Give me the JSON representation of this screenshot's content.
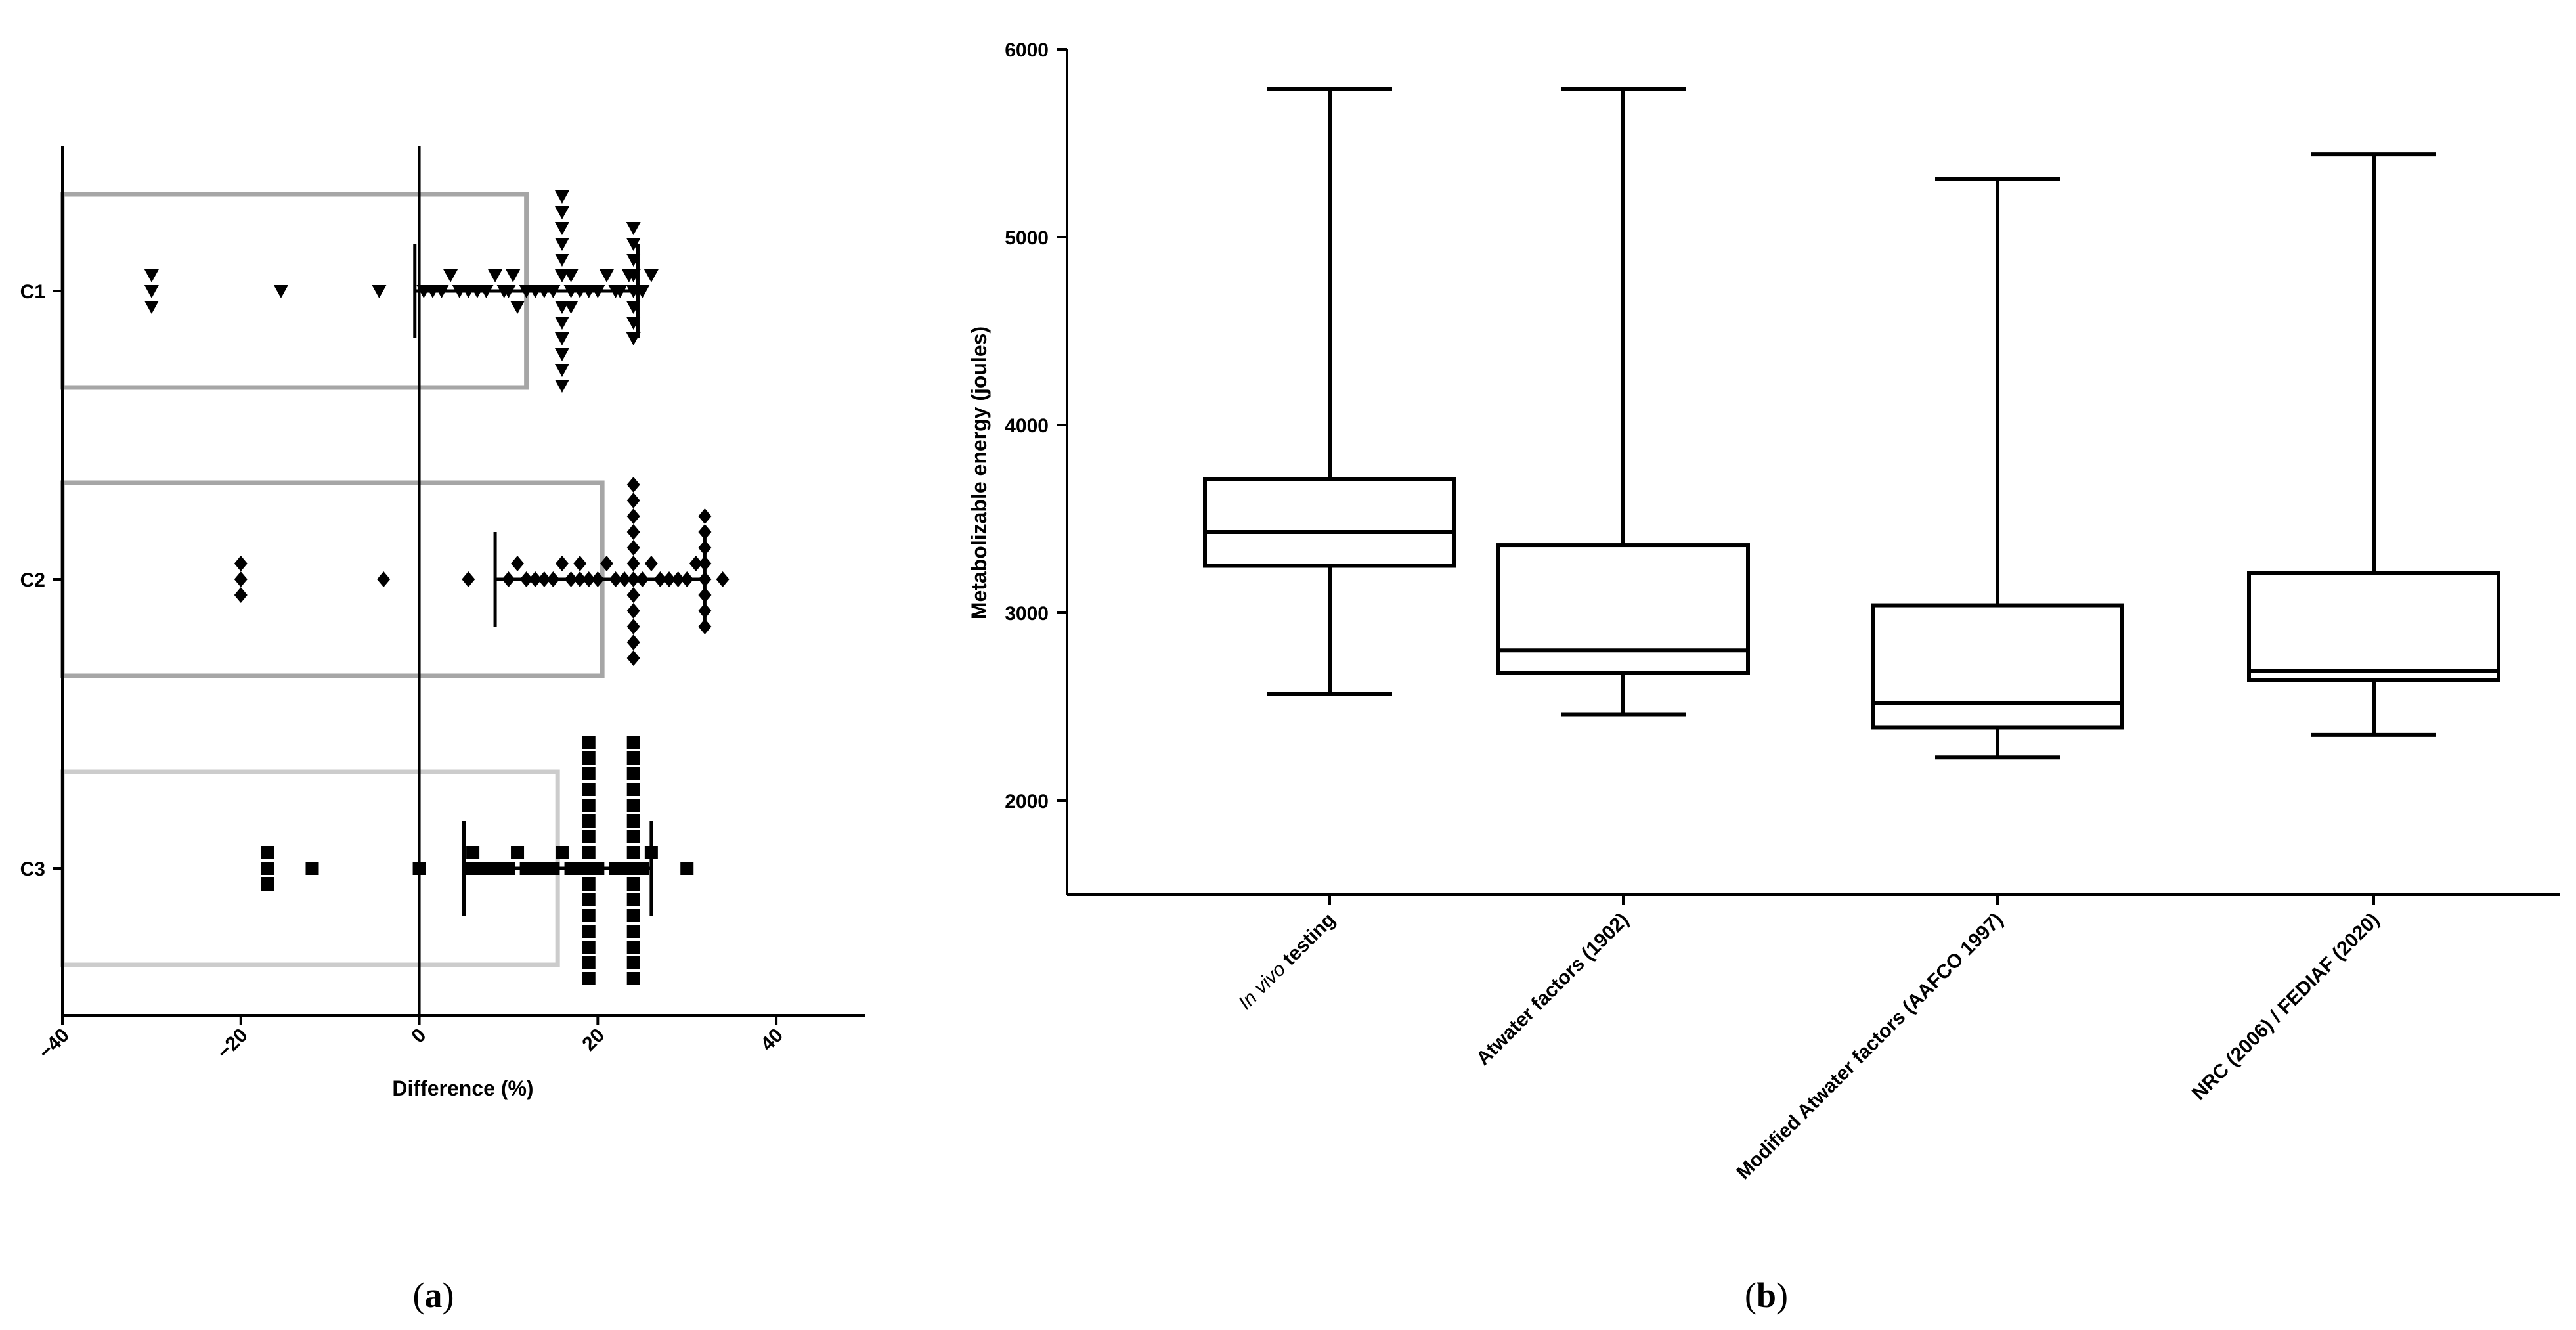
{
  "chart_data": [
    {
      "panel": "(a)",
      "panel_letter": "a",
      "type": "scatter",
      "orientation": "horizontal",
      "xlabel": "Difference (%)",
      "ylabel": "",
      "xlim": [
        -40,
        50
      ],
      "xticks": [
        -40,
        -20,
        0,
        20,
        40
      ],
      "xtick_labels": [
        "−40",
        "−20",
        "0",
        "20",
        "40"
      ],
      "categories": [
        "C1",
        "C2",
        "C3"
      ],
      "reference_line_x": 0,
      "colors": {
        "C1": "#a6a6a6",
        "C2": "#a6a6a6",
        "C3": "#cccccc",
        "points": "#000000"
      },
      "groups": [
        {
          "name": "C1",
          "marker": "triangle-down",
          "bar_mean": 12,
          "error": {
            "low": -0.5,
            "high": 24.5
          },
          "points": [
            -30,
            -30,
            -30,
            -15.5,
            -4.5,
            0.5,
            1.5,
            2.5,
            3.5,
            4.5,
            5.5,
            6.5,
            7.5,
            8.5,
            9.5,
            10,
            10.5,
            11,
            12,
            13,
            14,
            15,
            16,
            16,
            16,
            16,
            16,
            16,
            16,
            16,
            16,
            16,
            16,
            16,
            17,
            17,
            17,
            18,
            19,
            20,
            21,
            22,
            22.5,
            23.5,
            24,
            24,
            24,
            24,
            24,
            24,
            24,
            24,
            25,
            26
          ]
        },
        {
          "name": "C2",
          "marker": "diamond",
          "bar_mean": 20.5,
          "error": {
            "low": 8.5,
            "high": 32
          },
          "points": [
            -20,
            -20,
            -20,
            -4,
            5.5,
            10,
            11,
            12,
            13,
            14,
            15,
            16,
            17,
            18,
            18,
            19,
            20,
            21,
            22,
            23,
            24,
            24,
            24,
            24,
            24,
            24,
            24,
            24,
            24,
            24,
            24,
            24,
            25,
            26,
            27,
            28,
            29,
            30,
            31,
            32,
            32,
            32,
            32,
            32,
            32,
            32,
            32,
            34
          ]
        },
        {
          "name": "C3",
          "marker": "square",
          "bar_mean": 15.5,
          "error": {
            "low": 5,
            "high": 26
          },
          "points": [
            -17,
            -17,
            -17,
            -12,
            0,
            5.5,
            6,
            7,
            8,
            9,
            10,
            11,
            12,
            13,
            14,
            15,
            16,
            17,
            18,
            19,
            19,
            19,
            19,
            19,
            19,
            19,
            19,
            19,
            19,
            19,
            19,
            19,
            19,
            19,
            19,
            20,
            22,
            23,
            24,
            24,
            24,
            24,
            24,
            24,
            24,
            24,
            24,
            24,
            24,
            24,
            24,
            24,
            24,
            24,
            25,
            26,
            30
          ]
        }
      ]
    },
    {
      "panel": "(b)",
      "panel_letter": "b",
      "type": "box",
      "ylabel": "Metabolizable energy (joules)",
      "xlabel": "",
      "ylim": [
        1500,
        6000
      ],
      "yticks": [
        2000,
        3000,
        4000,
        5000,
        6000
      ],
      "categories": [
        {
          "label_italic": "In vivo",
          "label": " testing"
        },
        {
          "label_italic": "",
          "label": "Atwater factors (1902)"
        },
        {
          "label_italic": "",
          "label": "Modified Atwater factors (AAFCO 1997)"
        },
        {
          "label_italic": "",
          "label": "NRC (2006) / FEDIAF (2020)"
        }
      ],
      "boxes": [
        {
          "min": 2570,
          "q1": 3250,
          "median": 3430,
          "q3": 3710,
          "max": 5790
        },
        {
          "min": 2460,
          "q1": 2680,
          "median": 2800,
          "q3": 3360,
          "max": 5790
        },
        {
          "min": 2230,
          "q1": 2390,
          "median": 2520,
          "q3": 3040,
          "max": 5310
        },
        {
          "min": 2350,
          "q1": 2640,
          "median": 2690,
          "q3": 3210,
          "max": 5440
        }
      ]
    }
  ]
}
